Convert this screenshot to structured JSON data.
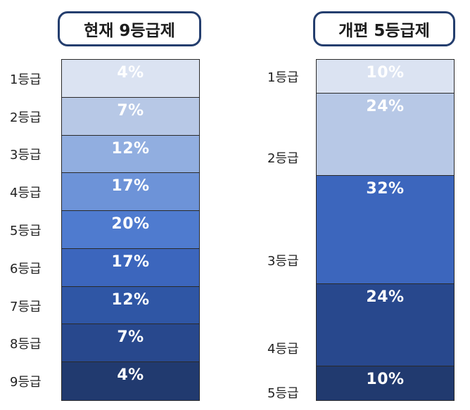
{
  "left": {
    "title": "현재 9등급제",
    "segments": [
      {
        "grade": "1등급",
        "pct": "4%",
        "value": 4,
        "color": "#dbe3f2",
        "text_color": "#ffffff"
      },
      {
        "grade": "2등급",
        "pct": "7%",
        "value": 7,
        "color": "#b7c8e6",
        "text_color": "#ffffff"
      },
      {
        "grade": "3등급",
        "pct": "12%",
        "value": 12,
        "color": "#91aee0",
        "text_color": "#ffffff"
      },
      {
        "grade": "4등급",
        "pct": "17%",
        "value": 17,
        "color": "#6d93d8",
        "text_color": "#ffffff"
      },
      {
        "grade": "5등급",
        "pct": "20%",
        "value": 20,
        "color": "#4f7bcf",
        "text_color": "#ffffff"
      },
      {
        "grade": "6등급",
        "pct": "17%",
        "value": 17,
        "color": "#3c66bd",
        "text_color": "#ffffff"
      },
      {
        "grade": "7등급",
        "pct": "12%",
        "value": 12,
        "color": "#2f56a5",
        "text_color": "#ffffff"
      },
      {
        "grade": "8등급",
        "pct": "7%",
        "value": 7,
        "color": "#28488d",
        "text_color": "#ffffff"
      },
      {
        "grade": "9등급",
        "pct": "4%",
        "value": 4,
        "color": "#213a6f",
        "text_color": "#ffffff"
      }
    ]
  },
  "right": {
    "title": "개편 5등급제",
    "segments": [
      {
        "grade": "1등급",
        "pct": "10%",
        "value": 10,
        "color": "#dbe3f2",
        "text_color": "#ffffff"
      },
      {
        "grade": "2등급",
        "pct": "24%",
        "value": 24,
        "color": "#b7c8e6",
        "text_color": "#ffffff"
      },
      {
        "grade": "3등급",
        "pct": "32%",
        "value": 32,
        "color": "#3c66bd",
        "text_color": "#ffffff"
      },
      {
        "grade": "4등급",
        "pct": "24%",
        "value": 24,
        "color": "#28488d",
        "text_color": "#ffffff"
      },
      {
        "grade": "5등급",
        "pct": "10%",
        "value": 10,
        "color": "#213a6f",
        "text_color": "#ffffff"
      }
    ]
  }
}
